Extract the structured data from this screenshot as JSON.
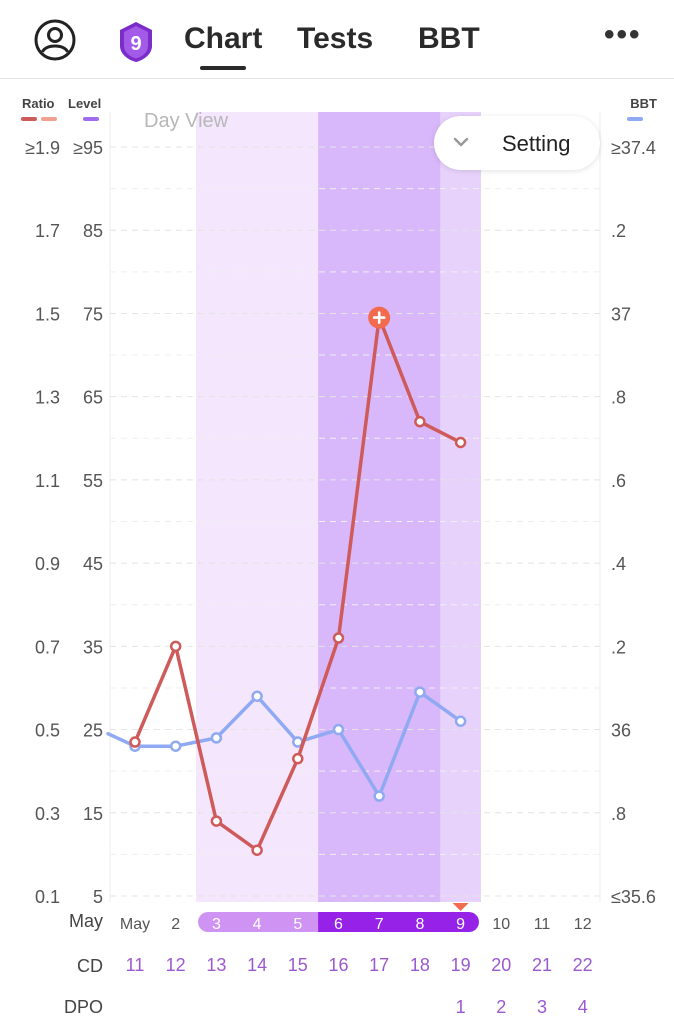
{
  "header": {
    "badge_number": "9",
    "tabs": [
      {
        "label": "Chart",
        "active": true
      },
      {
        "label": "Tests",
        "active": false
      },
      {
        "label": "BBT",
        "active": false
      }
    ],
    "more_label": "•••"
  },
  "setting": {
    "label": "Setting"
  },
  "legend": {
    "ratio": "Ratio",
    "level": "Level",
    "bbt": "BBT"
  },
  "view_label": "Day View",
  "colors": {
    "ratio": "#cf5a5a",
    "ratio_light": "#f2a08e",
    "level": "#a06cf0",
    "bbt": "#8fa9f2",
    "band_light": "#f3e6fd",
    "band_mid": "#e7d2fb",
    "band_dark": "#d8b8fa",
    "pill_light": "#cf93f4",
    "pill_dark": "#9522e6",
    "purple_text": "#9b59d0",
    "peak_marker": "#f26b4f"
  },
  "chart_data": {
    "type": "line",
    "x_dates": [
      "May",
      "2",
      "3",
      "4",
      "5",
      "6",
      "7",
      "8",
      "9",
      "10",
      "11",
      "12"
    ],
    "row_labels": {
      "date": "May",
      "cycle_day": "CD",
      "dpo": "DPO"
    },
    "cycle_day": [
      "11",
      "12",
      "13",
      "14",
      "15",
      "16",
      "17",
      "18",
      "19",
      "20",
      "21",
      "22"
    ],
    "dpo": [
      "",
      "",
      "",
      "",
      "",
      "",
      "",
      "",
      "1",
      "2",
      "3",
      "4"
    ],
    "axes": {
      "ratio": {
        "ticks": [
          "≥1.9",
          "1.7",
          "1.5",
          "1.3",
          "1.1",
          "0.9",
          "0.7",
          "0.5",
          "0.3",
          "0.1"
        ],
        "range": [
          0.1,
          1.9
        ]
      },
      "level": {
        "ticks": [
          "≥95",
          "85",
          "75",
          "65",
          "55",
          "45",
          "35",
          "25",
          "15",
          "5"
        ],
        "range": [
          5,
          95
        ]
      },
      "bbt": {
        "ticks": [
          "≥37.4",
          ".2",
          "37",
          ".8",
          ".6",
          ".4",
          ".2",
          "36",
          ".8",
          "≤35.6"
        ],
        "range": [
          35.6,
          37.4
        ]
      }
    },
    "series": [
      {
        "name": "Ratio",
        "key": "ratio",
        "values": [
          0.47,
          0.7,
          0.28,
          0.21,
          0.43,
          0.72,
          1.49,
          1.24,
          1.19,
          null,
          null,
          null
        ]
      },
      {
        "name": "BBT",
        "key": "bbt",
        "values": [
          35.96,
          35.96,
          35.98,
          36.08,
          35.97,
          36.0,
          35.84,
          36.09,
          36.02,
          null,
          null,
          null
        ],
        "pre_value": 35.99
      }
    ],
    "peak_index": 6,
    "today_index": 8,
    "fertile_window": {
      "light": [
        2,
        8
      ],
      "mid": [
        7,
        8
      ],
      "dark": [
        5,
        7
      ]
    },
    "pills": {
      "light": [
        2,
        5
      ],
      "dark": [
        5,
        8
      ]
    }
  }
}
